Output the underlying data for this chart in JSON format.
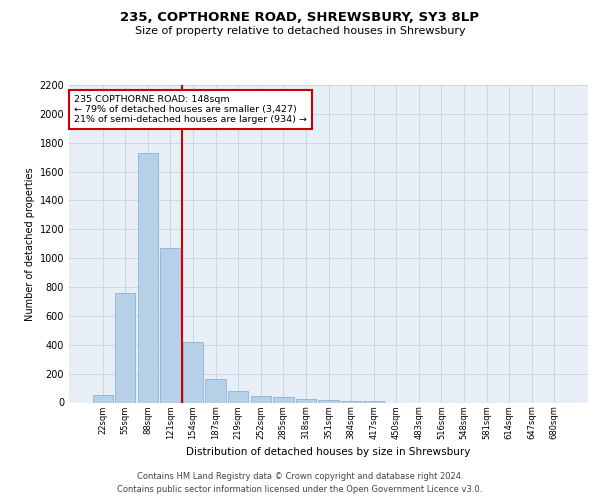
{
  "title": "235, COPTHORNE ROAD, SHREWSBURY, SY3 8LP",
  "subtitle": "Size of property relative to detached houses in Shrewsbury",
  "xlabel": "Distribution of detached houses by size in Shrewsbury",
  "ylabel": "Number of detached properties",
  "bar_color": "#b8cfe8",
  "bar_edge_color": "#7aadd4",
  "grid_color": "#c8d4e8",
  "background_color": "#e8eef6",
  "annotation_box_color": "#cc0000",
  "annotation_line_color": "#cc0000",
  "annotation_line1": "235 COPTHORNE ROAD: 148sqm",
  "annotation_line2": "← 79% of detached houses are smaller (3,427)",
  "annotation_line3": "21% of semi-detached houses are larger (934) →",
  "categories": [
    "22sqm",
    "55sqm",
    "88sqm",
    "121sqm",
    "154sqm",
    "187sqm",
    "219sqm",
    "252sqm",
    "285sqm",
    "318sqm",
    "351sqm",
    "384sqm",
    "417sqm",
    "450sqm",
    "483sqm",
    "516sqm",
    "548sqm",
    "581sqm",
    "614sqm",
    "647sqm",
    "680sqm"
  ],
  "values": [
    55,
    760,
    1730,
    1070,
    420,
    160,
    80,
    45,
    40,
    25,
    15,
    10,
    10,
    0,
    0,
    0,
    0,
    0,
    0,
    0,
    0
  ],
  "ylim": [
    0,
    2200
  ],
  "yticks": [
    0,
    200,
    400,
    600,
    800,
    1000,
    1200,
    1400,
    1600,
    1800,
    2000,
    2200
  ],
  "vline_pos": 3.5,
  "footer_line1": "Contains HM Land Registry data © Crown copyright and database right 2024.",
  "footer_line2": "Contains public sector information licensed under the Open Government Licence v3.0."
}
